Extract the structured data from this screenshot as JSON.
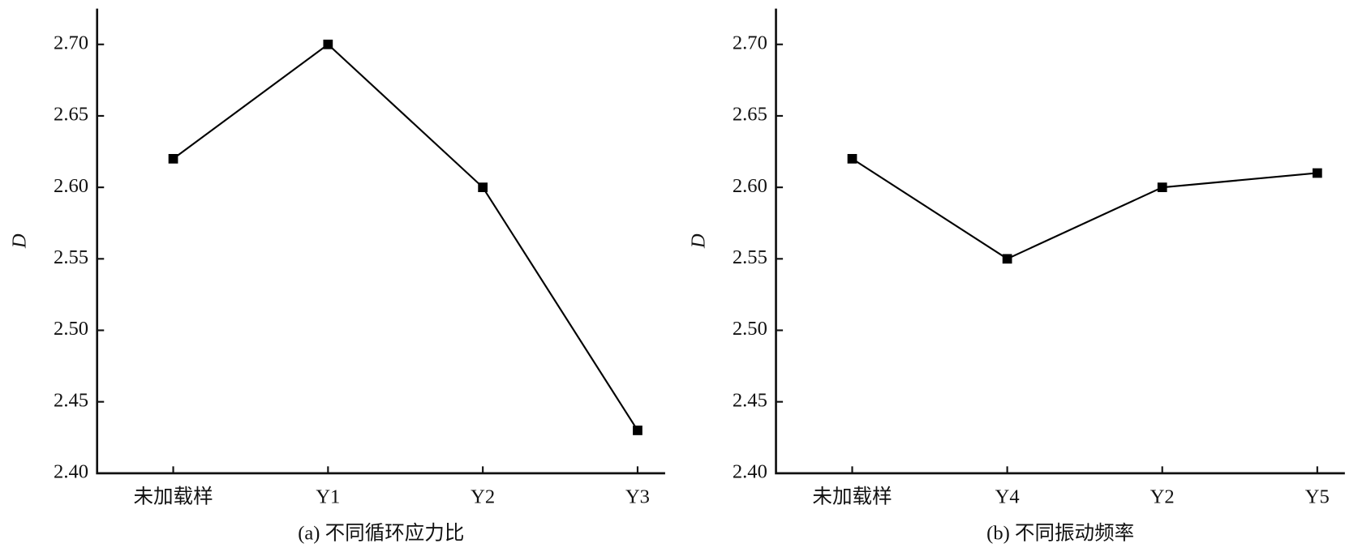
{
  "chart_data": [
    {
      "type": "line",
      "x_label": "(a) 不同循环应力比",
      "y_label": "D",
      "categories": [
        "未加载样",
        "Y1",
        "Y2",
        "Y3"
      ],
      "values": [
        2.62,
        2.7,
        2.6,
        2.43
      ],
      "color": "#000000",
      "ylim": [
        2.4,
        2.725
      ],
      "yticks": [
        {
          "value": 2.4,
          "label": "2.40"
        },
        2.45,
        {
          "value": 2.5,
          "label": "2.50"
        },
        2.55,
        {
          "value": 2.6,
          "label": "2.60"
        },
        2.65,
        {
          "value": 2.7,
          "label": "2.70"
        }
      ]
    },
    {
      "type": "line",
      "x_label": "(b) 不同振动频率",
      "y_label": "D",
      "categories": [
        "未加载样",
        "Y4",
        "Y2",
        "Y5"
      ],
      "values": [
        2.62,
        2.55,
        2.6,
        2.61
      ],
      "color": "#000000",
      "ylim": [
        2.4,
        2.725
      ],
      "yticks": [
        {
          "value": 2.4,
          "label": "2.40"
        },
        2.45,
        {
          "value": 2.5,
          "label": "2.50"
        },
        2.55,
        {
          "value": 2.6,
          "label": "2.60"
        },
        2.65,
        {
          "value": 2.7,
          "label": "2.70"
        }
      ]
    }
  ]
}
